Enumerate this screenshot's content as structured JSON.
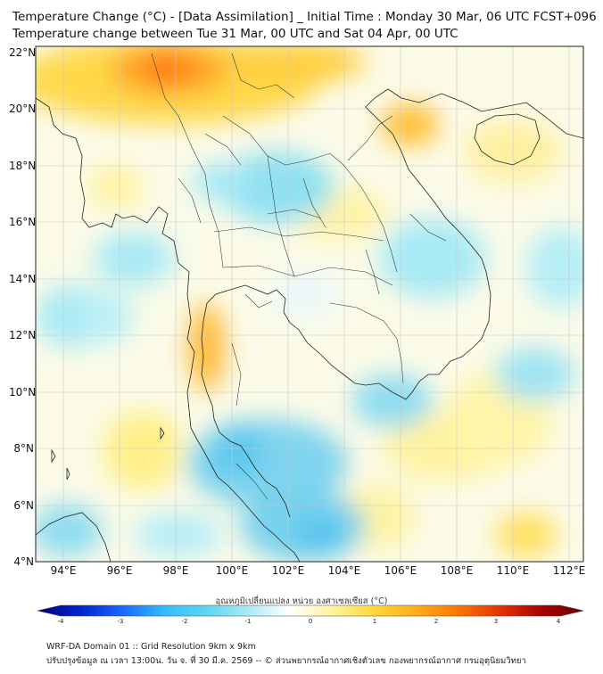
{
  "title_line1": "Temperature Change (°C) - [Data Assimilation] _ Initial Time : Monday 30 Mar, 06 UTC FCST+096",
  "title_line2": "Temperature change between Tue 31 Mar, 00 UTC and Sat 04 Apr, 00 UTC",
  "map": {
    "lat_range": [
      4,
      22
    ],
    "lon_range": [
      93,
      112.5
    ],
    "lat_ticks": [
      "22°N",
      "20°N",
      "18°N",
      "16°N",
      "14°N",
      "12°N",
      "10°N",
      "8°N",
      "6°N",
      "4°N"
    ],
    "lon_ticks": [
      "94°E",
      "96°E",
      "98°E",
      "100°E",
      "102°E",
      "104°E",
      "106°E",
      "108°E",
      "110°E",
      "112°E"
    ]
  },
  "colorbar": {
    "title": "อุณหภูมิเปลี่ยนแปลง หน่วย องศาเซลเซียส (°C)",
    "range": [
      -4,
      4
    ],
    "tick_labels": [
      "-4",
      "-3",
      "-2",
      "-1",
      "0",
      "1",
      "2",
      "3",
      "4"
    ],
    "colors": [
      "#00007f",
      "#0022cc",
      "#1a66ff",
      "#33bbff",
      "#5ad6f0",
      "#a8eaf5",
      "#ffffff",
      "#fff3a0",
      "#ffd93a",
      "#ffae1a",
      "#ff7700",
      "#e63300",
      "#a80000",
      "#6a0000"
    ]
  },
  "footer_line1": "WRF-DA Domain 01 :: Grid Resolution 9km x 9km",
  "footer_line2": "ปรับปรุงข้อมูล ณ เวลา 13:00น. วัน จ. ที่ 30 มี.ค. 2569 -- © ส่วนพยากรณ์อากาศเชิงตัวเลข กองพยากรณ์อากาศ กรมอุตุนิยมวิทยา"
}
